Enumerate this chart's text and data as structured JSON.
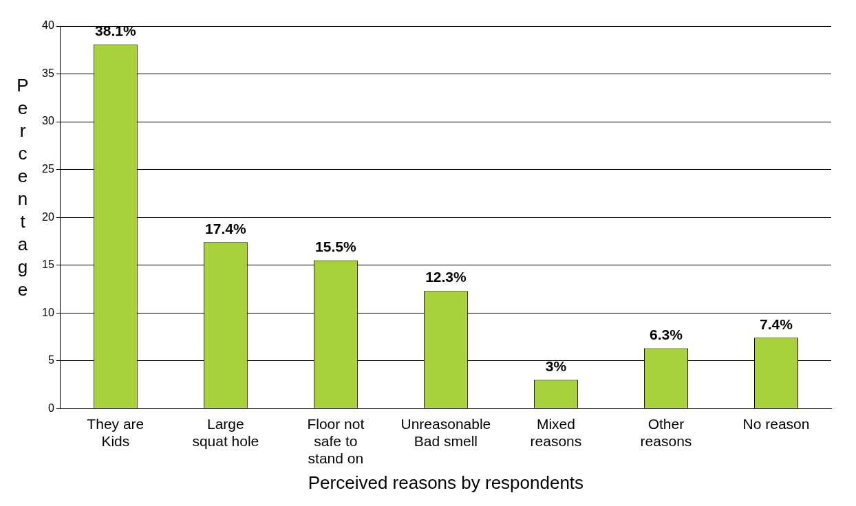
{
  "chart_data": {
    "type": "bar",
    "xlabel": "Perceived reasons by respondents",
    "ylabel": "Percentage",
    "categories": [
      "They are Kids",
      "Large squat hole",
      "Floor not safe to stand on",
      "Unreasonable Bad smell",
      "Mixed reasons",
      "Other reasons",
      "No reason"
    ],
    "values": [
      38.1,
      17.4,
      15.5,
      12.3,
      3,
      6.3,
      7.4
    ],
    "value_labels": [
      "38.1%",
      "17.4%",
      "15.5%",
      "12.3%",
      "3%",
      "6.3%",
      "7.4%"
    ],
    "color": "#a9d13c",
    "ylim": [
      0,
      40
    ],
    "yticks": [
      0,
      5,
      10,
      15,
      20,
      25,
      30,
      35,
      40
    ],
    "grid": "y",
    "legend": false
  }
}
